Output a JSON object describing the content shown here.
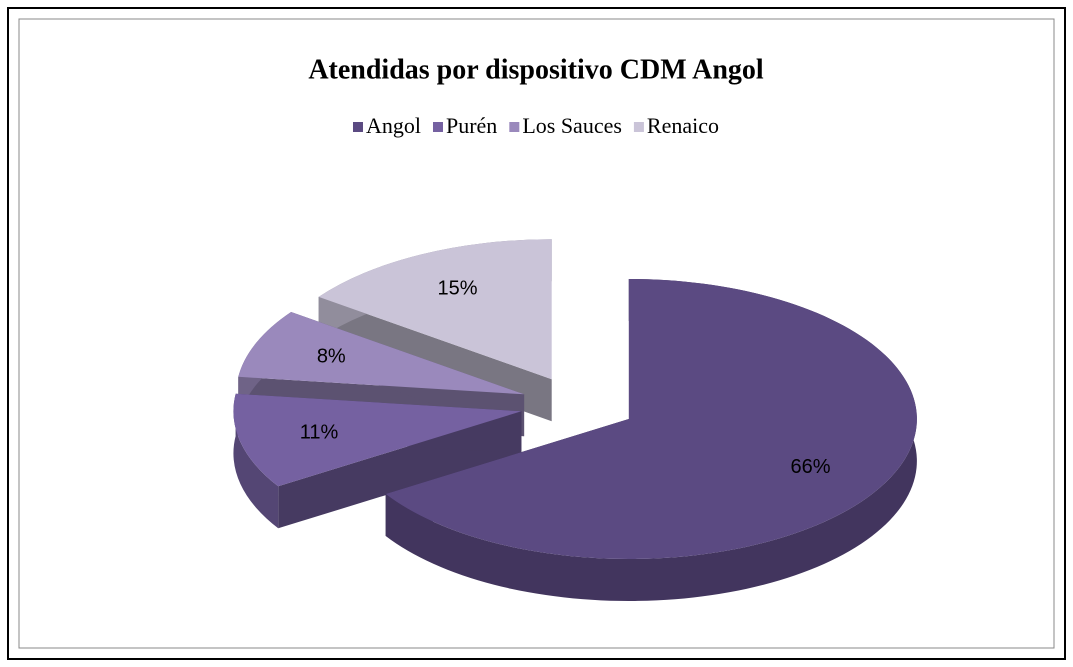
{
  "chart_data": {
    "type": "pie",
    "title": "Atendidas por dispositivo CDM Angol",
    "categories": [
      "Angol",
      "Purén",
      "Los Sauces",
      "Renaico"
    ],
    "values": [
      66,
      11,
      8,
      15
    ],
    "value_labels": [
      "66%",
      "11%",
      "8%",
      "15%"
    ],
    "colors": [
      "#5b4a82",
      "#7561a1",
      "#9a89bc",
      "#cac4d8"
    ],
    "legend": "top"
  }
}
